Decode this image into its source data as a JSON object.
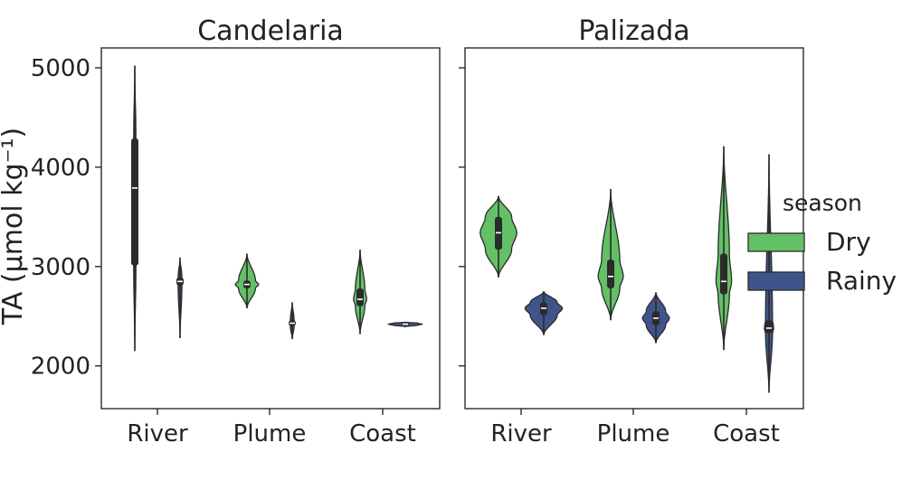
{
  "colors": {
    "Dry": "#64c066",
    "Rainy": "#3f5589"
  },
  "ylabel": "TA (μmol kg⁻¹)",
  "legend": {
    "title": "season",
    "entries": [
      "Dry",
      "Rainy"
    ]
  },
  "chart_data": [
    {
      "type": "violin",
      "title": "Candelaria",
      "categories": [
        "River",
        "Plume",
        "Coast"
      ],
      "ylabel": "TA (μmol kg⁻¹)",
      "yticks": [
        2000,
        3000,
        4000,
        5000
      ],
      "ylim": [
        1570,
        5200
      ],
      "series": [
        {
          "name": "Dry",
          "values": [
            {
              "category": "River",
              "min": 2150,
              "q1": 3010,
              "median": 3790,
              "q3": 4290,
              "max": 5020,
              "width": 0.035
            },
            {
              "category": "Plume",
              "min": 2580,
              "q1": 2780,
              "median": 2820,
              "q3": 2860,
              "max": 3130,
              "width": 0.27
            },
            {
              "category": "Coast",
              "min": 2320,
              "q1": 2600,
              "median": 2670,
              "q3": 2780,
              "max": 3170,
              "width": 0.15
            }
          ]
        },
        {
          "name": "Rainy",
          "values": [
            {
              "category": "River",
              "min": 2280,
              "q1": 2810,
              "median": 2850,
              "q3": 2890,
              "max": 3090,
              "width": 0.06
            },
            {
              "category": "Plume",
              "min": 2270,
              "q1": 2400,
              "median": 2430,
              "q3": 2460,
              "max": 2640,
              "width": 0.06
            },
            {
              "category": "Coast",
              "min": 2395,
              "q1": 2410,
              "median": 2420,
              "q3": 2430,
              "max": 2440,
              "width": 0.39
            }
          ]
        }
      ]
    },
    {
      "type": "violin",
      "title": "Palizada",
      "categories": [
        "River",
        "Plume",
        "Coast"
      ],
      "ylabel": "",
      "yticks": [
        2000,
        3000,
        4000,
        5000
      ],
      "ylim": [
        1570,
        5200
      ],
      "series": [
        {
          "name": "Dry",
          "values": [
            {
              "category": "River",
              "min": 2890,
              "q1": 3170,
              "median": 3340,
              "q3": 3500,
              "max": 3710,
              "width": 0.42
            },
            {
              "category": "Plume",
              "min": 2460,
              "q1": 2780,
              "median": 2900,
              "q3": 3070,
              "max": 3780,
              "width": 0.29
            },
            {
              "category": "Coast",
              "min": 2160,
              "q1": 2720,
              "median": 2850,
              "q3": 3130,
              "max": 4210,
              "width": 0.18
            }
          ]
        },
        {
          "name": "Rainy",
          "values": [
            {
              "category": "River",
              "min": 2310,
              "q1": 2510,
              "median": 2580,
              "q3": 2640,
              "max": 2750,
              "width": 0.43
            },
            {
              "category": "Plume",
              "min": 2230,
              "q1": 2410,
              "median": 2480,
              "q3": 2550,
              "max": 2740,
              "width": 0.31
            },
            {
              "category": "Coast",
              "min": 1730,
              "q1": 2330,
              "median": 2380,
              "q3": 2460,
              "max": 4130,
              "width": 0.11
            }
          ]
        }
      ]
    }
  ]
}
